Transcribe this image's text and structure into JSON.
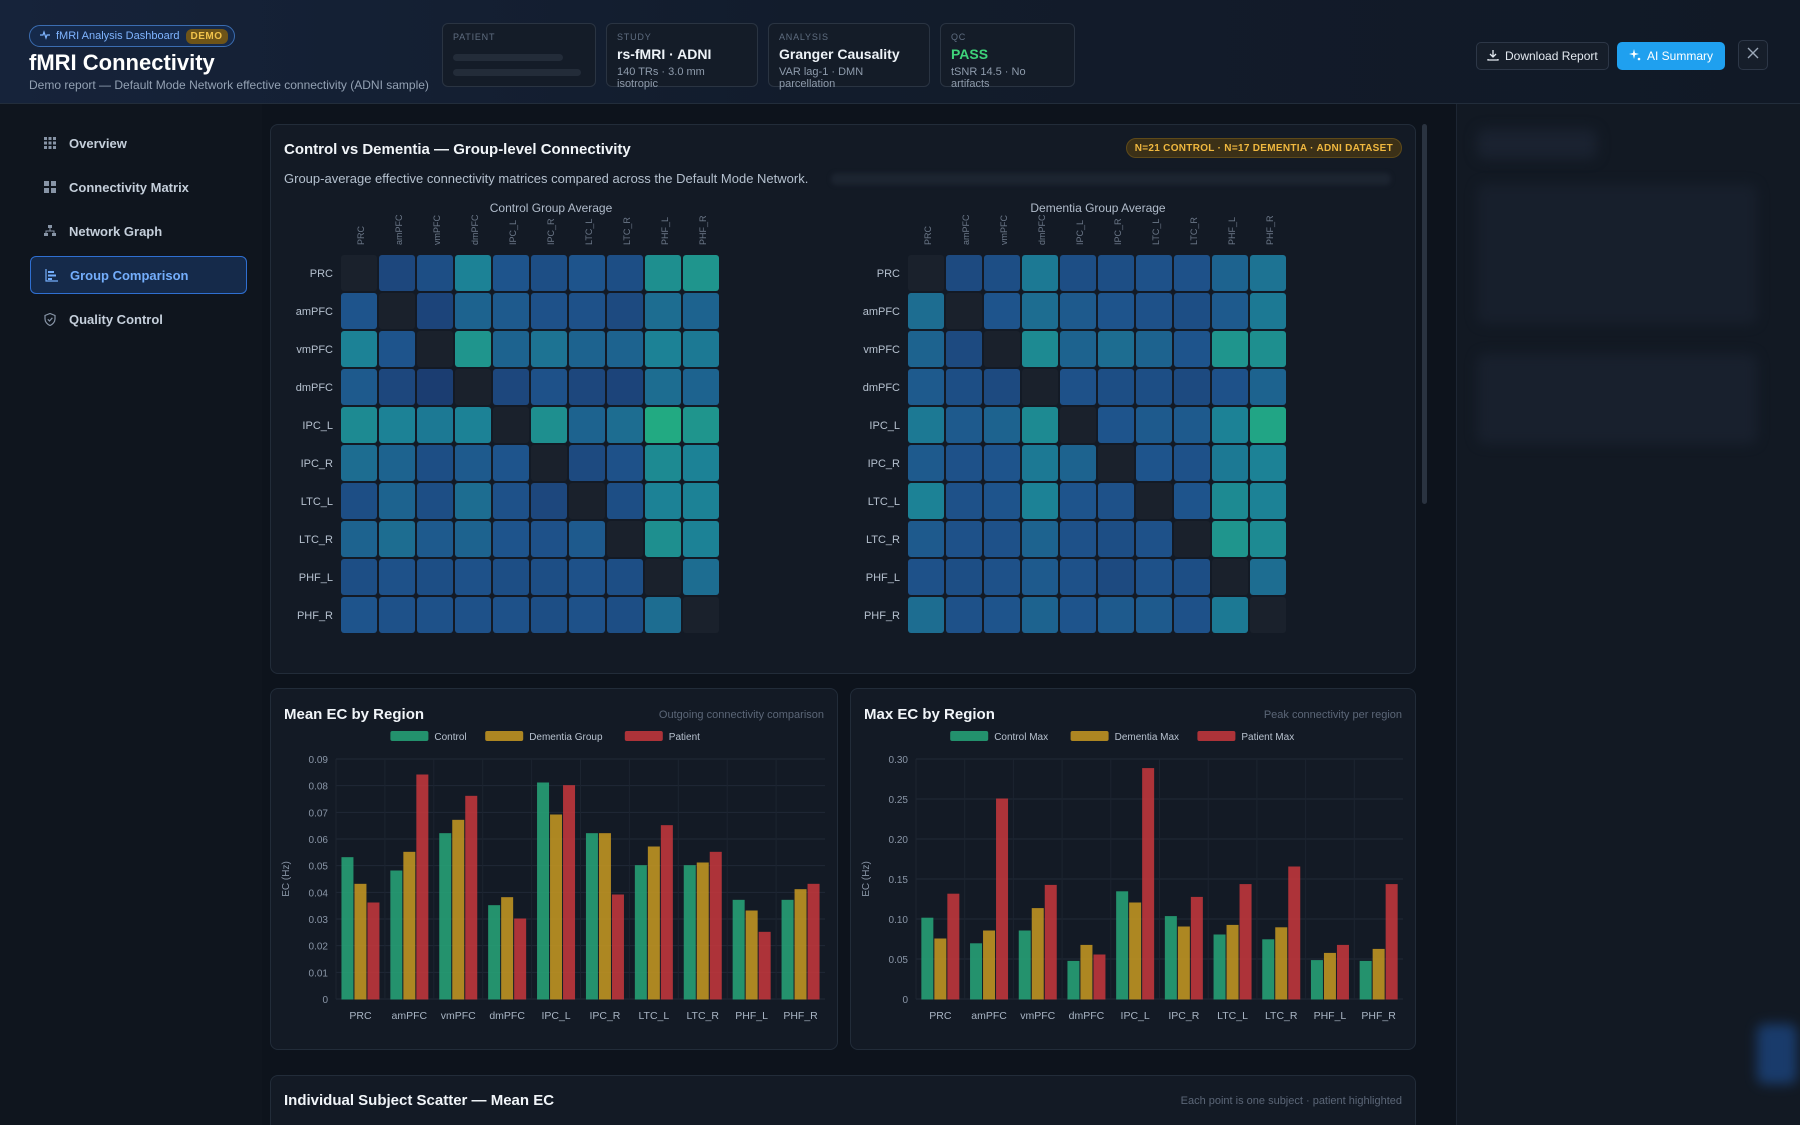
{
  "header": {
    "app_badge": "fMRI Analysis Dashboard",
    "demo_badge": "DEMO",
    "title": "fMRI Connectivity",
    "subtitle": "Demo report — Default Mode Network effective connectivity (ADNI sample)",
    "cards": [
      {
        "label": "PATIENT",
        "value": "",
        "sub": ""
      },
      {
        "label": "STUDY",
        "value": "rs-fMRI · ADNI",
        "sub": "140 TRs · 3.0 mm isotropic"
      },
      {
        "label": "ANALYSIS",
        "value": "Granger Causality",
        "sub": "VAR lag-1 · DMN parcellation"
      },
      {
        "label": "QC",
        "value": "PASS",
        "sub": "tSNR 14.5 · No artifacts"
      }
    ],
    "download_label": "Download Report",
    "ai_label": "AI Summary",
    "icons": {
      "download": "download-icon",
      "ai": "sparkle-icon",
      "close": "close-icon"
    }
  },
  "sidebar": {
    "items": [
      {
        "label": "Overview",
        "icon": "grid-icon",
        "active": false
      },
      {
        "label": "Connectivity Matrix",
        "icon": "matrix-icon",
        "active": false
      },
      {
        "label": "Network Graph",
        "icon": "network-icon",
        "active": false
      },
      {
        "label": "Group Comparison",
        "icon": "bars-icon",
        "active": true
      },
      {
        "label": "Quality Control",
        "icon": "shield-icon",
        "active": false
      }
    ]
  },
  "group_panel": {
    "title": "Control vs Dementia — Group-level Connectivity",
    "badge": "N=21 CONTROL · N=17 DEMENTIA · ADNI DATASET",
    "description": "Group-average effective connectivity matrices compared across the Default Mode Network.",
    "regions": [
      "PRC",
      "amPFC",
      "vmPFC",
      "dmPFC",
      "IPC_L",
      "IPC_R",
      "LTC_L",
      "LTC_R",
      "PHF_L",
      "PHF_R"
    ]
  },
  "colors": {
    "control": "#27a77a",
    "dementia": "#c99a22",
    "patient": "#c9383d",
    "accent": "#1fa0ef",
    "pass": "#3fd37a"
  },
  "chart_data": [
    {
      "type": "heatmap",
      "title": "Control Group Average",
      "rows": [
        "PRC",
        "amPFC",
        "vmPFC",
        "dmPFC",
        "IPC_L",
        "IPC_R",
        "LTC_L",
        "LTC_R",
        "PHF_L",
        "PHF_R"
      ],
      "cols": [
        "PRC",
        "amPFC",
        "vmPFC",
        "dmPFC",
        "IPC_L",
        "IPC_R",
        "LTC_L",
        "LTC_R",
        "PHF_L",
        "PHF_R"
      ],
      "values": [
        [
          null,
          0.3,
          0.35,
          0.55,
          0.4,
          0.35,
          0.4,
          0.35,
          0.6,
          0.62
        ],
        [
          0.4,
          null,
          0.28,
          0.45,
          0.42,
          0.38,
          0.38,
          0.32,
          0.48,
          0.45
        ],
        [
          0.55,
          0.4,
          null,
          0.62,
          0.45,
          0.5,
          0.45,
          0.45,
          0.55,
          0.52
        ],
        [
          0.42,
          0.3,
          0.22,
          null,
          0.3,
          0.38,
          0.3,
          0.28,
          0.48,
          0.45
        ],
        [
          0.58,
          0.55,
          0.52,
          0.55,
          null,
          0.6,
          0.45,
          0.48,
          0.7,
          0.62
        ],
        [
          0.48,
          0.45,
          0.35,
          0.42,
          0.4,
          null,
          0.32,
          0.38,
          0.58,
          0.55
        ],
        [
          0.35,
          0.45,
          0.35,
          0.48,
          0.38,
          0.3,
          null,
          0.35,
          0.55,
          0.55
        ],
        [
          0.45,
          0.48,
          0.42,
          0.45,
          0.4,
          0.38,
          0.42,
          null,
          0.6,
          0.55
        ],
        [
          0.35,
          0.38,
          0.35,
          0.38,
          0.35,
          0.35,
          0.38,
          0.35,
          null,
          0.48
        ],
        [
          0.4,
          0.38,
          0.38,
          0.38,
          0.38,
          0.35,
          0.38,
          0.35,
          0.48,
          null
        ]
      ]
    },
    {
      "type": "heatmap",
      "title": "Dementia Group Average",
      "rows": [
        "PRC",
        "amPFC",
        "vmPFC",
        "dmPFC",
        "IPC_L",
        "IPC_R",
        "LTC_L",
        "LTC_R",
        "PHF_L",
        "PHF_R"
      ],
      "cols": [
        "PRC",
        "amPFC",
        "vmPFC",
        "dmPFC",
        "IPC_L",
        "IPC_R",
        "LTC_L",
        "LTC_R",
        "PHF_L",
        "PHF_R"
      ],
      "values": [
        [
          null,
          0.32,
          0.35,
          0.52,
          0.35,
          0.35,
          0.38,
          0.38,
          0.45,
          0.5
        ],
        [
          0.48,
          null,
          0.4,
          0.48,
          0.42,
          0.4,
          0.38,
          0.35,
          0.42,
          0.52
        ],
        [
          0.45,
          0.32,
          null,
          0.58,
          0.45,
          0.48,
          0.45,
          0.4,
          0.62,
          0.6
        ],
        [
          0.42,
          0.35,
          0.32,
          null,
          0.38,
          0.35,
          0.35,
          0.32,
          0.38,
          0.45
        ],
        [
          0.52,
          0.42,
          0.45,
          0.58,
          null,
          0.4,
          0.42,
          0.42,
          0.55,
          0.68
        ],
        [
          0.42,
          0.38,
          0.4,
          0.52,
          0.45,
          null,
          0.4,
          0.38,
          0.52,
          0.55
        ],
        [
          0.55,
          0.38,
          0.4,
          0.55,
          0.4,
          0.38,
          null,
          0.4,
          0.58,
          0.55
        ],
        [
          0.42,
          0.38,
          0.38,
          0.45,
          0.38,
          0.35,
          0.38,
          null,
          0.62,
          0.58
        ],
        [
          0.38,
          0.35,
          0.38,
          0.42,
          0.38,
          0.32,
          0.38,
          0.35,
          null,
          0.48
        ],
        [
          0.48,
          0.38,
          0.4,
          0.45,
          0.4,
          0.42,
          0.42,
          0.38,
          0.52,
          null
        ]
      ]
    },
    {
      "type": "bar",
      "title": "Mean EC by Region",
      "note": "Outgoing connectivity comparison",
      "ylabel": "EC (Hz)",
      "ylim": [
        0,
        0.09
      ],
      "yticks": [
        0,
        0.01,
        0.02,
        0.03,
        0.04,
        0.05,
        0.06,
        0.07,
        0.08,
        0.09
      ],
      "legend": "top",
      "categories": [
        "PRC",
        "amPFC",
        "vmPFC",
        "dmPFC",
        "IPC_L",
        "IPC_R",
        "LTC_L",
        "LTC_R",
        "PHF_L",
        "PHF_R"
      ],
      "series": [
        {
          "name": "Control",
          "values": [
            0.053,
            0.048,
            0.062,
            0.035,
            0.081,
            0.062,
            0.05,
            0.05,
            0.037,
            0.037
          ]
        },
        {
          "name": "Dementia Group",
          "values": [
            0.043,
            0.055,
            0.067,
            0.038,
            0.069,
            0.062,
            0.057,
            0.051,
            0.033,
            0.041
          ]
        },
        {
          "name": "Patient",
          "values": [
            0.036,
            0.084,
            0.076,
            0.03,
            0.08,
            0.039,
            0.065,
            0.055,
            0.025,
            0.043
          ]
        }
      ]
    },
    {
      "type": "bar",
      "title": "Max EC by Region",
      "note": "Peak connectivity per region",
      "ylabel": "EC (Hz)",
      "ylim": [
        0,
        0.3
      ],
      "yticks": [
        0,
        0.05,
        0.1,
        0.15,
        0.2,
        0.25,
        0.3
      ],
      "legend": "top",
      "categories": [
        "PRC",
        "amPFC",
        "vmPFC",
        "dmPFC",
        "IPC_L",
        "IPC_R",
        "LTC_L",
        "LTC_R",
        "PHF_L",
        "PHF_R"
      ],
      "series": [
        {
          "name": "Control Max",
          "values": [
            0.101,
            0.069,
            0.085,
            0.047,
            0.134,
            0.103,
            0.08,
            0.074,
            0.048,
            0.047
          ]
        },
        {
          "name": "Dementia Max",
          "values": [
            0.075,
            0.085,
            0.113,
            0.067,
            0.12,
            0.09,
            0.092,
            0.089,
            0.057,
            0.062
          ]
        },
        {
          "name": "Patient Max",
          "values": [
            0.131,
            0.25,
            0.142,
            0.055,
            0.288,
            0.127,
            0.143,
            0.165,
            0.067,
            0.143
          ]
        }
      ]
    }
  ],
  "mean_panel": {
    "title": "Mean EC by Region",
    "note": "Outgoing connectivity comparison"
  },
  "max_panel": {
    "title": "Max EC by Region",
    "note": "Peak connectivity per region"
  },
  "scatter_panel": {
    "title": "Individual Subject Scatter — Mean EC",
    "note": "Each point is one subject · patient highlighted"
  }
}
